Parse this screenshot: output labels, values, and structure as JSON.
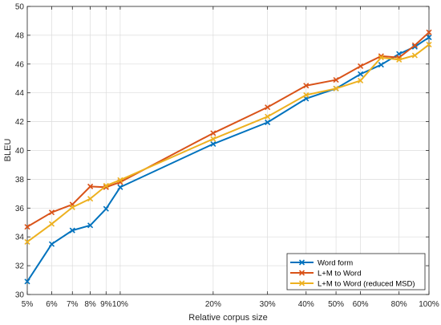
{
  "chart_data": {
    "type": "line",
    "xlabel": "Relative corpus size",
    "ylabel": "BLEU",
    "x_scale": "log",
    "xlim": [
      5,
      100
    ],
    "ylim": [
      30,
      50
    ],
    "x_ticks": [
      5,
      6,
      7,
      8,
      9,
      10,
      20,
      30,
      40,
      50,
      60,
      80,
      100
    ],
    "x_tick_labels": [
      "5%",
      "6%",
      "7%",
      "8%",
      "9%",
      "10%",
      "20%",
      "30%",
      "40%",
      "50%",
      "60%",
      "80%",
      "100%"
    ],
    "y_ticks": [
      30,
      32,
      34,
      36,
      38,
      40,
      42,
      44,
      46,
      48,
      50
    ],
    "y_tick_labels": [
      "30",
      "32",
      "34",
      "36",
      "38",
      "40",
      "42",
      "44",
      "46",
      "48",
      "50"
    ],
    "grid": true,
    "legend_position": "bottom-right",
    "x": [
      5,
      6,
      7,
      8,
      9,
      10,
      20,
      30,
      40,
      50,
      60,
      70,
      80,
      90,
      100
    ],
    "series": [
      {
        "name": "Word form",
        "color": "#0072BD",
        "values": [
          30.9,
          33.5,
          34.45,
          34.8,
          35.95,
          37.45,
          40.45,
          41.95,
          43.6,
          44.3,
          45.3,
          45.95,
          46.7,
          47.2,
          47.85
        ]
      },
      {
        "name": "L+M to Word",
        "color": "#D95319",
        "values": [
          34.7,
          35.7,
          36.25,
          37.5,
          37.45,
          37.8,
          41.2,
          43.0,
          44.5,
          44.9,
          45.85,
          46.55,
          46.45,
          47.3,
          48.2
        ]
      },
      {
        "name": "L+M to Word (reduced MSD)",
        "color": "#EDB120",
        "values": [
          33.65,
          34.9,
          36.05,
          36.65,
          37.55,
          37.95,
          40.8,
          42.35,
          43.85,
          44.3,
          44.85,
          46.45,
          46.3,
          46.6,
          47.35
        ]
      }
    ]
  }
}
